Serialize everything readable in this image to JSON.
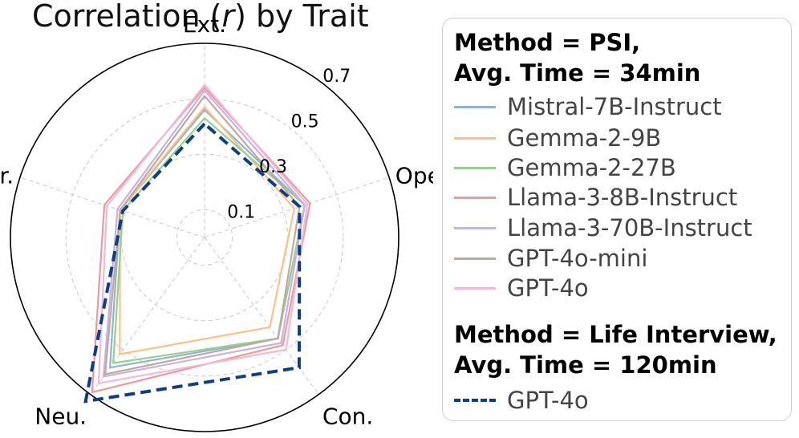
{
  "chart_data": {
    "type": "radar",
    "title_prefix": "Correlation (",
    "title_var": "r",
    "title_suffix": ") by Trait",
    "axes": [
      "Ext.",
      "Agr.",
      "Neu.",
      "Con.",
      "Ope."
    ],
    "rlim": [
      0,
      0.7
    ],
    "r_ticks": [
      0.1,
      0.3,
      0.5,
      0.7
    ],
    "r_tick_labels": [
      "0.1",
      "0.3",
      "0.5",
      "0.7"
    ],
    "grid": true,
    "groups": [
      {
        "heading_line1": "Method = PSI,",
        "heading_line2": "Avg. Time = 34min",
        "series": [
          {
            "name": "Mistral-7B-Instruct",
            "color": "#8fb3d6",
            "style": "solid",
            "values": [
              0.46,
              0.32,
              0.58,
              0.45,
              0.38
            ]
          },
          {
            "name": "Gemma-2-9B",
            "color": "#ffbf86",
            "style": "solid",
            "values": [
              0.47,
              0.32,
              0.52,
              0.4,
              0.34
            ]
          },
          {
            "name": "Gemma-2-27B",
            "color": "#96d08f",
            "style": "solid",
            "values": [
              0.43,
              0.31,
              0.56,
              0.45,
              0.38
            ]
          },
          {
            "name": "Llama-3-8B-Instruct",
            "color": "#ec9a9a",
            "style": "solid",
            "values": [
              0.54,
              0.38,
              0.69,
              0.48,
              0.4
            ]
          },
          {
            "name": "Llama-3-70B-Instruct",
            "color": "#c5b3e0",
            "style": "solid",
            "values": [
              0.53,
              0.33,
              0.62,
              0.47,
              0.38
            ]
          },
          {
            "name": "GPT-4o-mini",
            "color": "#bfa89f",
            "style": "solid",
            "values": [
              0.51,
              0.32,
              0.61,
              0.45,
              0.36
            ]
          },
          {
            "name": "GPT-4o",
            "color": "#f3b8d8",
            "style": "solid",
            "values": [
              0.55,
              0.37,
              0.65,
              0.5,
              0.39
            ]
          }
        ]
      },
      {
        "heading_line1": "Method = Life Interview,",
        "heading_line2": "Avg. Time = 120min",
        "series": [
          {
            "name": "GPT-4o",
            "color": "#0e3f86",
            "style": "dashed",
            "values": [
              0.41,
              0.31,
              0.73,
              0.58,
              0.36
            ]
          }
        ]
      }
    ]
  }
}
